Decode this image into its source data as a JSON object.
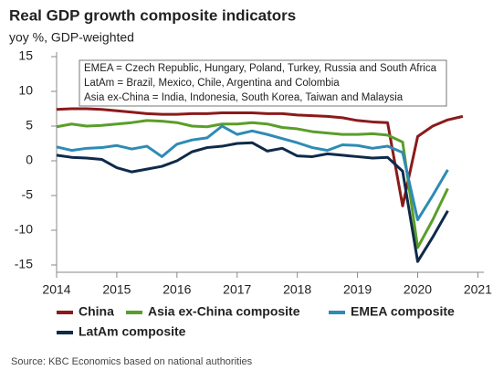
{
  "chart_data": {
    "type": "line",
    "title": "Real GDP growth composite indicators",
    "subtitle": "yoy %, GDP-weighted",
    "note": [
      "EMEA = Czech Republic, Hungary, Poland, Turkey, Russia and South Africa",
      "LatAm = Brazil, Mexico, Chile, Argentina and Colombia",
      "Asia ex-China = India, Indonesia, South Korea, Taiwan and Malaysia"
    ],
    "source": "Source: KBC Economics based on national authorities",
    "x": [
      2014,
      2014.25,
      2014.5,
      2014.75,
      2015,
      2015.25,
      2015.5,
      2015.75,
      2016,
      2016.25,
      2016.5,
      2016.75,
      2017,
      2017.25,
      2017.5,
      2017.75,
      2018,
      2018.25,
      2018.5,
      2018.75,
      2019,
      2019.25,
      2019.5,
      2019.75,
      2020,
      2020.25,
      2020.5,
      2020.75
    ],
    "series": [
      {
        "name": "China",
        "color": "#8b1a1a",
        "values": [
          7.4,
          7.5,
          7.5,
          7.4,
          7.2,
          7.0,
          6.8,
          6.7,
          6.7,
          6.8,
          6.8,
          6.9,
          6.9,
          6.9,
          6.8,
          6.8,
          6.6,
          6.5,
          6.4,
          6.2,
          5.8,
          5.6,
          5.5,
          -6.5,
          3.5,
          5.0,
          5.9,
          6.4
        ]
      },
      {
        "name": "Asia ex-China composite",
        "color": "#5a9e2a",
        "values": [
          4.9,
          5.3,
          5.0,
          5.1,
          5.3,
          5.5,
          5.8,
          5.7,
          5.5,
          5.0,
          4.9,
          5.3,
          5.3,
          5.5,
          5.3,
          4.8,
          4.6,
          4.2,
          4.0,
          3.8,
          3.8,
          3.9,
          3.7,
          2.7,
          -12.5,
          -8.5,
          -4.0,
          null
        ]
      },
      {
        "name": "EMEA composite",
        "color": "#2e8bb5",
        "values": [
          2.0,
          1.5,
          1.8,
          1.9,
          2.2,
          1.7,
          2.1,
          0.6,
          2.4,
          3.0,
          3.3,
          5.0,
          3.8,
          4.3,
          3.8,
          3.2,
          2.6,
          1.9,
          1.5,
          2.3,
          2.2,
          1.8,
          2.1,
          1.2,
          -8.5,
          -5.0,
          -1.3,
          null
        ]
      },
      {
        "name": "LatAm composite",
        "color": "#0f2a4a",
        "values": [
          0.8,
          0.5,
          0.4,
          0.2,
          -1.0,
          -1.6,
          -1.2,
          -0.8,
          0.0,
          1.3,
          1.9,
          2.1,
          2.5,
          2.6,
          1.4,
          1.8,
          0.7,
          0.6,
          1.0,
          0.8,
          0.6,
          0.4,
          0.5,
          -1.5,
          -14.5,
          -11.0,
          -7.2,
          null
        ]
      }
    ],
    "xlim": [
      2014,
      2021.1
    ],
    "xticks": [
      2014,
      2015,
      2016,
      2017,
      2018,
      2019,
      2020,
      2021
    ],
    "ylim": [
      -15,
      15
    ],
    "yticks": [
      15,
      10,
      5,
      0,
      -5,
      -10,
      -15
    ]
  }
}
